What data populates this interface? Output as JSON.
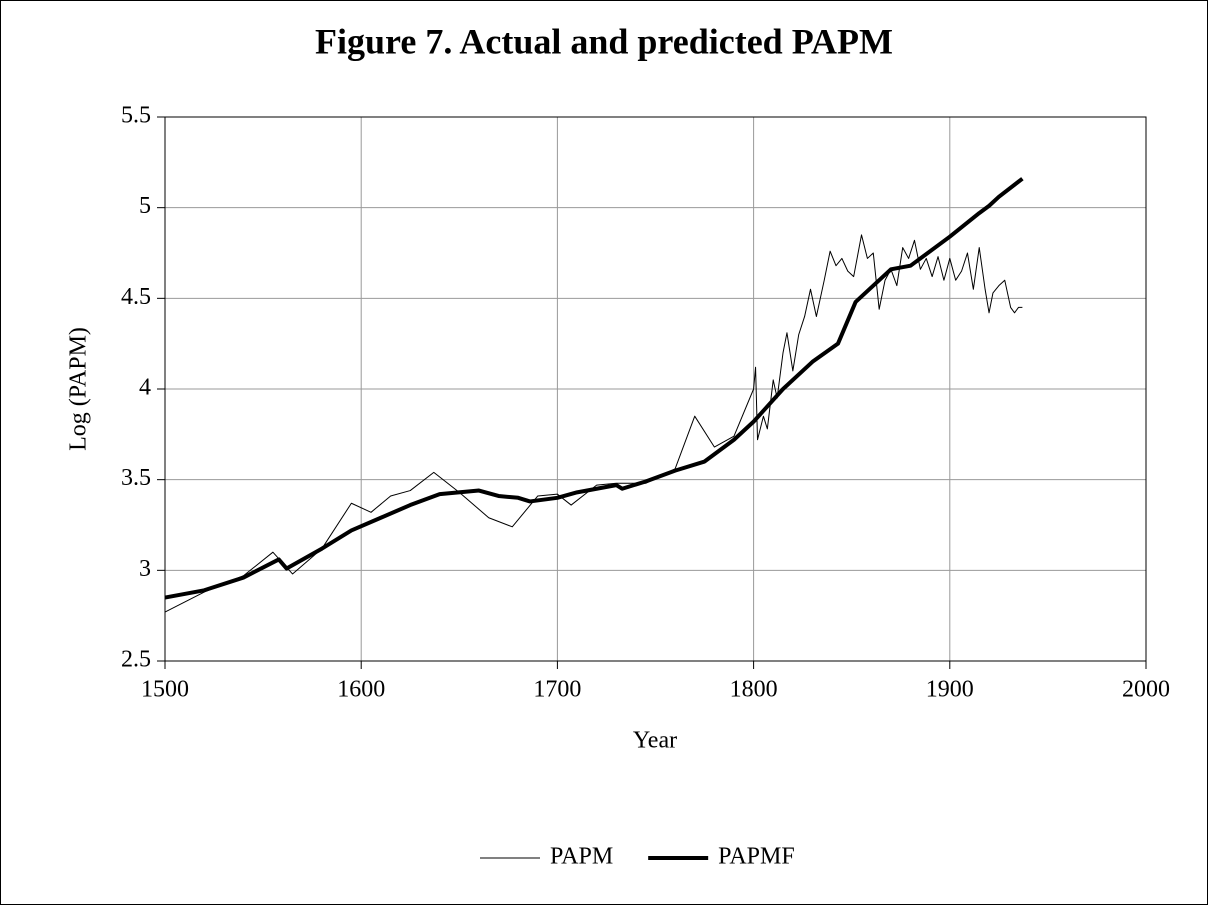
{
  "chart_data": {
    "type": "line",
    "title": "Figure 7. Actual and predicted PAPM",
    "xlabel": "Year",
    "ylabel": "Log (PAPM)",
    "xlim": [
      1500,
      2000
    ],
    "xticks": [
      1500,
      1600,
      1700,
      1800,
      1900,
      2000
    ],
    "ylim": [
      2.5,
      5.5
    ],
    "yticks": [
      2.5,
      3,
      3.5,
      4,
      4.5,
      5,
      5.5
    ],
    "grid": true,
    "legend": "bottom",
    "series": [
      {
        "name": "PAPM",
        "color": "#000000",
        "width": 1,
        "x": [
          1500,
          1520,
          1540,
          1555,
          1565,
          1580,
          1595,
          1605,
          1615,
          1625,
          1637,
          1650,
          1665,
          1677,
          1690,
          1700,
          1707,
          1720,
          1730,
          1745,
          1760,
          1770,
          1780,
          1790,
          1800,
          1801,
          1802,
          1805,
          1807,
          1810,
          1812,
          1815,
          1817,
          1820,
          1823,
          1826,
          1829,
          1832,
          1836,
          1839,
          1842,
          1845,
          1848,
          1851,
          1855,
          1858,
          1861,
          1864,
          1867,
          1870,
          1873,
          1876,
          1879,
          1882,
          1885,
          1888,
          1891,
          1894,
          1897,
          1900,
          1903,
          1906,
          1909,
          1912,
          1915,
          1918,
          1920,
          1922,
          1925,
          1928,
          1931,
          1933,
          1935,
          1937
        ],
        "values": [
          2.77,
          2.88,
          2.97,
          3.1,
          2.98,
          3.12,
          3.37,
          3.32,
          3.41,
          3.44,
          3.54,
          3.43,
          3.29,
          3.24,
          3.41,
          3.42,
          3.36,
          3.47,
          3.48,
          3.48,
          3.56,
          3.85,
          3.68,
          3.74,
          4.0,
          4.12,
          3.72,
          3.85,
          3.78,
          4.05,
          3.95,
          4.2,
          4.31,
          4.1,
          4.3,
          4.4,
          4.55,
          4.4,
          4.6,
          4.76,
          4.68,
          4.72,
          4.65,
          4.62,
          4.85,
          4.72,
          4.75,
          4.44,
          4.6,
          4.66,
          4.57,
          4.78,
          4.72,
          4.82,
          4.66,
          4.72,
          4.62,
          4.73,
          4.6,
          4.72,
          4.6,
          4.65,
          4.75,
          4.55,
          4.78,
          4.55,
          4.42,
          4.53,
          4.57,
          4.6,
          4.45,
          4.42,
          4.45,
          4.45
        ]
      },
      {
        "name": "PAPMF",
        "color": "#000000",
        "width": 4,
        "x": [
          1500,
          1520,
          1540,
          1558,
          1562,
          1580,
          1595,
          1610,
          1625,
          1640,
          1660,
          1670,
          1680,
          1686,
          1700,
          1710,
          1730,
          1733,
          1745,
          1760,
          1775,
          1790,
          1800,
          1815,
          1830,
          1843,
          1852,
          1870,
          1880,
          1900,
          1915,
          1920,
          1925,
          1937
        ],
        "values": [
          2.85,
          2.89,
          2.96,
          3.06,
          3.01,
          3.12,
          3.22,
          3.29,
          3.36,
          3.42,
          3.44,
          3.41,
          3.4,
          3.38,
          3.4,
          3.43,
          3.47,
          3.45,
          3.49,
          3.55,
          3.6,
          3.72,
          3.82,
          4.0,
          4.15,
          4.25,
          4.48,
          4.66,
          4.68,
          4.84,
          4.97,
          5.01,
          5.06,
          5.16
        ]
      }
    ]
  }
}
